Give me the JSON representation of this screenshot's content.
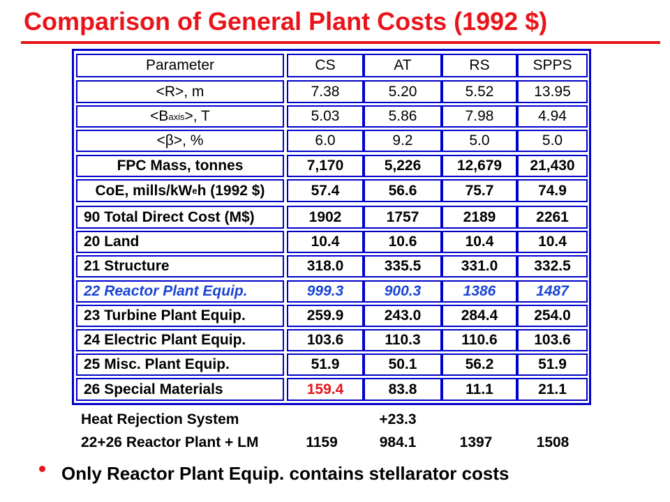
{
  "title": "Comparison of General Plant Costs (1992 $)",
  "colors": {
    "title": "#e8141a",
    "table_border": "#0000cc",
    "highlight_row": "#1a44d6",
    "highlight_cell": "#e8141a"
  },
  "table": {
    "header": [
      "Parameter",
      "CS",
      "AT",
      "RS",
      "SPPS"
    ],
    "rows": [
      {
        "param": "<R>, m",
        "values": [
          "7.38",
          "5.20",
          "5.52",
          "13.95"
        ]
      },
      {
        "param": "<B",
        "param_sub": "axis",
        "param_after": ">, T",
        "values": [
          "5.03",
          "5.86",
          "7.98",
          "4.94"
        ]
      },
      {
        "param": "<β>, %",
        "values": [
          "6.0",
          "9.2",
          "5.0",
          "5.0"
        ]
      },
      {
        "param": "FPC Mass, tonnes",
        "values": [
          "7,170",
          "5,226",
          "12,679",
          "21,430"
        ]
      },
      {
        "param": "CoE, mills/kW",
        "param_sub": "e",
        "param_after": "h (1992 $)",
        "values": [
          "57.4",
          "56.6",
          "75.7",
          "74.9"
        ]
      },
      {
        "param": "90 Total Direct Cost (M$)",
        "values": [
          "1902",
          "1757",
          "2189",
          "2261"
        ]
      },
      {
        "param": "20 Land",
        "values": [
          "10.4",
          "10.6",
          "10.4",
          "10.4"
        ]
      },
      {
        "param": "21 Structure",
        "values": [
          "318.0",
          "335.5",
          "331.0",
          "332.5"
        ]
      },
      {
        "param": "22 Reactor Plant Equip.",
        "values": [
          "999.3",
          "900.3",
          "1386",
          "1487"
        ]
      },
      {
        "param": "23 Turbine Plant Equip.",
        "values": [
          "259.9",
          "243.0",
          "284.4",
          "254.0"
        ]
      },
      {
        "param": "24 Electric Plant Equip.",
        "values": [
          "103.6",
          "110.3",
          "110.6",
          "103.6"
        ]
      },
      {
        "param": "25 Misc. Plant Equip.",
        "values": [
          "51.9",
          "50.1",
          "56.2",
          "51.9"
        ]
      },
      {
        "param": "26 Special Materials",
        "values": [
          "159.4",
          "83.8",
          "11.1",
          "21.1"
        ]
      }
    ],
    "extra_rows": [
      {
        "param": "Heat Rejection System",
        "values": [
          "",
          "+23.3",
          "",
          ""
        ]
      },
      {
        "param": "22+26 Reactor Plant + LM",
        "values": [
          "1159",
          "984.1",
          "1397",
          "1508"
        ]
      }
    ]
  },
  "bullet": "Only Reactor Plant Equip. contains stellarator costs"
}
